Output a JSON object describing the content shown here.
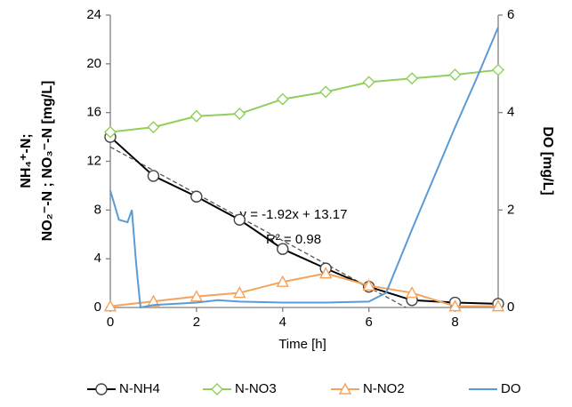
{
  "chart_data": {
    "type": "line",
    "x_label": "Time [h]",
    "y_label": [
      "NH₄⁺-N;",
      "NO₂⁻-N ; NO₃⁻-N [mg/L]"
    ],
    "y2_label": "DO [mg/L]",
    "x": [
      0,
      1,
      2,
      3,
      4,
      5,
      6,
      7,
      8,
      9
    ],
    "xlim": [
      0,
      9
    ],
    "xticks": [
      0,
      2,
      4,
      6,
      8
    ],
    "ylim": [
      0,
      24
    ],
    "yticks": [
      0,
      4,
      8,
      12,
      16,
      20,
      24
    ],
    "y2lim": [
      0,
      6
    ],
    "y2ticks": [
      0,
      2,
      4,
      6
    ],
    "grid": false,
    "legend": "bottom",
    "series": [
      {
        "name": "N-NH4",
        "color": "#000000",
        "marker": "circle",
        "values": [
          14.0,
          10.8,
          9.1,
          7.2,
          4.8,
          3.2,
          1.7,
          0.6,
          0.4,
          0.3
        ]
      },
      {
        "name": "N-NO3",
        "color": "#8fcf5a",
        "marker": "diamond",
        "values": [
          14.4,
          14.8,
          15.7,
          15.9,
          17.1,
          17.7,
          18.5,
          18.8,
          19.1,
          19.5
        ]
      },
      {
        "name": "N-NO2",
        "color": "#f5a35c",
        "marker": "triangle",
        "values": [
          0.1,
          0.5,
          0.9,
          1.2,
          2.1,
          2.8,
          1.8,
          1.2,
          0.1,
          0.1
        ]
      },
      {
        "name": "DO",
        "color": "#5b9bd5",
        "axis": "y2",
        "x": [
          0,
          0.2,
          0.4,
          0.5,
          0.6,
          0.7,
          1,
          2,
          2.5,
          3,
          4,
          5,
          6,
          6.4,
          7,
          8,
          8.5,
          9
        ],
        "values": [
          2.4,
          1.8,
          1.75,
          2.0,
          0.9,
          0.0,
          0.05,
          0.1,
          0.15,
          0.12,
          0.1,
          0.1,
          0.12,
          0.3,
          1.6,
          3.7,
          4.7,
          5.75
        ]
      }
    ],
    "trendline": {
      "slope": -1.92,
      "intercept": 13.17,
      "equation": "y = -1.92x + 13.17",
      "r2": "R² = 0.98"
    }
  }
}
